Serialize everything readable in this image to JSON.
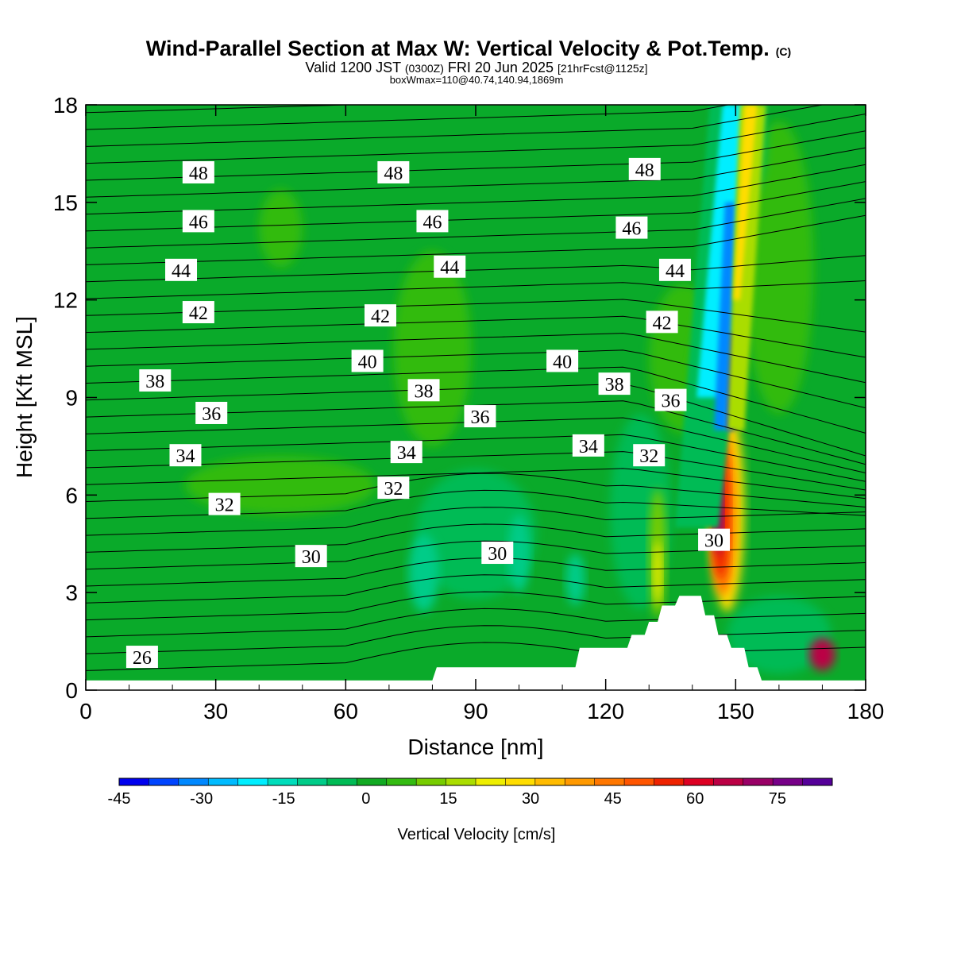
{
  "chart_data": {
    "type": "heatmap",
    "title": "Wind-Parallel Section at Max W: Vertical Velocity & Pot.Temp.",
    "title_mark": "(C)",
    "subtitle_parts": {
      "valid": "Valid 1200 JST",
      "utc": "(0300Z)",
      "date": "FRI 20 Jun 2025",
      "fcst": "[21hrFcst@1125z]"
    },
    "subtitle2": "boxWmax=110@40.74,140.94,1869m",
    "xlabel": "Distance [nm]",
    "ylabel": "Height [Kft MSL]",
    "xlim": [
      0,
      180
    ],
    "ylim": [
      0,
      18
    ],
    "xticks": [
      0,
      30,
      60,
      90,
      120,
      150,
      180
    ],
    "yticks": [
      0,
      3,
      6,
      9,
      12,
      15,
      18
    ],
    "colorbar": {
      "title": "Vertical Velocity [cm/s]",
      "min": -45,
      "max": 85,
      "step": 5,
      "tick_labels": [
        "-45",
        "-30",
        "-15",
        "0",
        "15",
        "30",
        "45",
        "60",
        "75"
      ],
      "colors": [
        "#0000ee",
        "#0044ff",
        "#0088ff",
        "#00bbff",
        "#00eeff",
        "#00ddbb",
        "#00cc88",
        "#00bb55",
        "#11aa22",
        "#33bb11",
        "#77cc00",
        "#aadd00",
        "#eeee00",
        "#ffdd00",
        "#ffbb00",
        "#ff9900",
        "#ff7700",
        "#ff5500",
        "#ee2200",
        "#dd0022",
        "#bb0044",
        "#990066",
        "#770088",
        "#550099"
      ]
    },
    "contour_labels": [
      {
        "text": "48",
        "x": 26,
        "y": 15.9
      },
      {
        "text": "48",
        "x": 71,
        "y": 15.9
      },
      {
        "text": "48",
        "x": 129,
        "y": 16.0
      },
      {
        "text": "46",
        "x": 26,
        "y": 14.4
      },
      {
        "text": "46",
        "x": 80,
        "y": 14.4
      },
      {
        "text": "46",
        "x": 126,
        "y": 14.2
      },
      {
        "text": "44",
        "x": 22,
        "y": 12.9
      },
      {
        "text": "44",
        "x": 84,
        "y": 13.0
      },
      {
        "text": "44",
        "x": 136,
        "y": 12.9
      },
      {
        "text": "42",
        "x": 26,
        "y": 11.6
      },
      {
        "text": "42",
        "x": 68,
        "y": 11.5
      },
      {
        "text": "42",
        "x": 133,
        "y": 11.3
      },
      {
        "text": "40",
        "x": 65,
        "y": 10.1
      },
      {
        "text": "40",
        "x": 110,
        "y": 10.1
      },
      {
        "text": "38",
        "x": 16,
        "y": 9.5
      },
      {
        "text": "38",
        "x": 78,
        "y": 9.2
      },
      {
        "text": "38",
        "x": 122,
        "y": 9.4
      },
      {
        "text": "36",
        "x": 29,
        "y": 8.5
      },
      {
        "text": "36",
        "x": 91,
        "y": 8.4
      },
      {
        "text": "36",
        "x": 135,
        "y": 8.9
      },
      {
        "text": "34",
        "x": 23,
        "y": 7.2
      },
      {
        "text": "34",
        "x": 74,
        "y": 7.3
      },
      {
        "text": "34",
        "x": 116,
        "y": 7.5
      },
      {
        "text": "32",
        "x": 32,
        "y": 5.7
      },
      {
        "text": "32",
        "x": 71,
        "y": 6.2
      },
      {
        "text": "32",
        "x": 130,
        "y": 7.2
      },
      {
        "text": "30",
        "x": 52,
        "y": 4.1
      },
      {
        "text": "30",
        "x": 95,
        "y": 4.2
      },
      {
        "text": "30",
        "x": 145,
        "y": 4.6
      },
      {
        "text": "26",
        "x": 13,
        "y": 1.0
      }
    ],
    "terrain_steps": [
      [
        0,
        0.3
      ],
      [
        80,
        0.3
      ],
      [
        81,
        0.7
      ],
      [
        113,
        0.7
      ],
      [
        114,
        1.3
      ],
      [
        125,
        1.3
      ],
      [
        126,
        1.7
      ],
      [
        129,
        1.7
      ],
      [
        130,
        2.1
      ],
      [
        132,
        2.1
      ],
      [
        133,
        2.6
      ],
      [
        136,
        2.6
      ],
      [
        137,
        2.9
      ],
      [
        142,
        2.9
      ],
      [
        143,
        2.3
      ],
      [
        145,
        2.3
      ],
      [
        146,
        1.7
      ],
      [
        148,
        1.7
      ],
      [
        149,
        1.3
      ],
      [
        152,
        1.3
      ],
      [
        153,
        0.7
      ],
      [
        155,
        0.7
      ],
      [
        156,
        0.3
      ],
      [
        180,
        0.3
      ]
    ]
  }
}
